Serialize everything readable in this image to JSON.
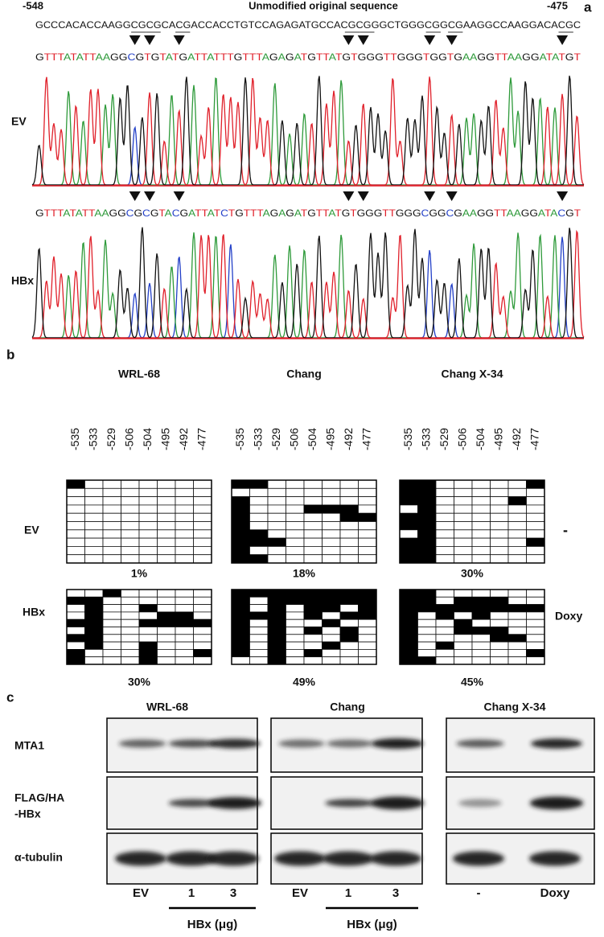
{
  "panel_a": {
    "label": "a",
    "start": "-548",
    "end": "-475",
    "title": "Unmodified original sequence",
    "reference_sequence": "GCCCACACCAAGGCGCGCACGACCACCTGTCCAGAGATGCCACGCGGGCTGGGCGGCGAAGGCCAAGGACACGC",
    "traces": [
      {
        "label": "EV",
        "sequence": "GTTTATATTAAGGCGTGTATGATTATTTGTTTAGAGATGTTATGTGGGTTGGGTGGTGAAGGTTAAGGATATGT"
      },
      {
        "label": "HBx",
        "sequence": "GTTTATATTAAGGCGCGTACGATTATCTGTTTAGAGATGTTATGTGGGTTGGGCGGCGAAGGTTAAGGATACGT"
      }
    ]
  },
  "panel_b": {
    "label": "b",
    "positions": [
      "-535",
      "-533",
      "-529",
      "-506",
      "-504",
      "-495",
      "-492",
      "-477"
    ],
    "conditions": [
      "EV",
      "HBx"
    ],
    "treatments": [
      "-",
      "Doxy"
    ],
    "cell_lines": [
      {
        "name": "WRL-68",
        "percentages": [
          "1%",
          "30%"
        ]
      },
      {
        "name": "Chang",
        "percentages": [
          "18%",
          "49%"
        ]
      },
      {
        "name": "Chang X-34",
        "percentages": [
          "30%",
          "45%"
        ]
      }
    ]
  },
  "panel_c": {
    "label": "c",
    "rows": [
      [
        "MTA1"
      ],
      [
        "FLAG/HA",
        "-HBx"
      ],
      [
        "α-tubulin"
      ]
    ],
    "groups": [
      {
        "name": "WRL-68",
        "lanes": [
          "EV",
          "1",
          "3"
        ],
        "dose_label": "HBx (μg)"
      },
      {
        "name": "Chang",
        "lanes": [
          "EV",
          "1",
          "3"
        ],
        "dose_label": "HBx (μg)"
      },
      {
        "name": "Chang X-34",
        "lanes": [
          "-",
          "Doxy"
        ]
      }
    ]
  }
}
